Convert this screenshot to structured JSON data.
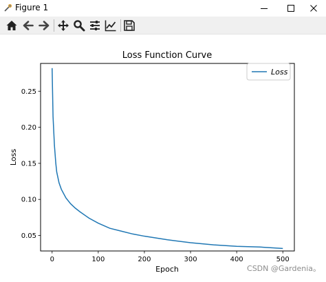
{
  "window": {
    "title": "Figure 1",
    "minimize_label": "Minimize",
    "maximize_label": "Maximize",
    "close_label": "Close"
  },
  "toolbar": {
    "items": [
      {
        "icon": "home-icon"
      },
      {
        "icon": "back-arrow-icon"
      },
      {
        "icon": "forward-arrow-icon"
      },
      {
        "icon": "pan-move-icon"
      },
      {
        "icon": "zoom-icon"
      },
      {
        "icon": "configure-subplots-icon"
      },
      {
        "icon": "edit-axis-icon"
      },
      {
        "icon": "save-icon"
      }
    ]
  },
  "chart_data": {
    "type": "line",
    "title": "Loss Function Curve",
    "xlabel": "Epoch",
    "ylabel": "Loss",
    "xlim": [
      -25,
      525
    ],
    "ylim": [
      0.0285,
      0.2885
    ],
    "xticks": [
      0,
      100,
      200,
      300,
      400,
      500
    ],
    "xtick_labels": [
      "0",
      "100",
      "200",
      "300",
      "400",
      "500"
    ],
    "yticks": [
      0.05,
      0.1,
      0.15,
      0.2,
      0.25
    ],
    "ytick_labels": [
      "0.05",
      "0.10",
      "0.15",
      "0.20",
      "0.25"
    ],
    "grid": false,
    "legend": "top-right",
    "series": [
      {
        "name": "Loss",
        "color": "#1f77b4",
        "x": [
          0,
          2,
          5,
          8,
          10,
          15,
          20,
          30,
          40,
          50,
          60,
          80,
          100,
          125,
          150,
          175,
          200,
          250,
          300,
          350,
          400,
          450,
          500
        ],
        "y": [
          0.282,
          0.215,
          0.175,
          0.15,
          0.138,
          0.123,
          0.114,
          0.102,
          0.094,
          0.088,
          0.083,
          0.074,
          0.067,
          0.06,
          0.056,
          0.052,
          0.049,
          0.044,
          0.04,
          0.037,
          0.035,
          0.034,
          0.032
        ]
      }
    ]
  },
  "watermark": "CSDN @Gardenia。"
}
